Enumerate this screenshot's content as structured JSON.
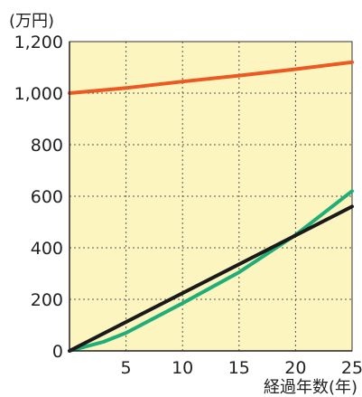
{
  "chart_data": {
    "type": "line",
    "ylabel": "(万円)",
    "xlabel": "経過年数(年)",
    "xlim": [
      0,
      25
    ],
    "ylim": [
      0,
      1200
    ],
    "x_ticks": [
      5,
      10,
      15,
      20,
      25
    ],
    "y_ticks": [
      0,
      200,
      400,
      600,
      800,
      1000,
      1200
    ],
    "y_tick_labels": [
      "0",
      "200",
      "400",
      "600",
      "800",
      "1,000",
      "1,200"
    ],
    "grid": true,
    "grid_style": "dotted",
    "background_color": "#fdf5c0",
    "series": [
      {
        "color": "#ec5a24",
        "x": [
          0,
          5,
          10,
          15,
          20,
          25
        ],
        "y": [
          1000,
          1020,
          1045,
          1068,
          1093,
          1120
        ]
      },
      {
        "color": "#1fae78",
        "x": [
          0,
          3,
          5,
          10,
          15,
          20,
          25
        ],
        "y": [
          0,
          35,
          70,
          185,
          305,
          450,
          620
        ]
      },
      {
        "color": "#1a1a1a",
        "x": [
          0,
          25
        ],
        "y": [
          0,
          560
        ]
      }
    ]
  }
}
